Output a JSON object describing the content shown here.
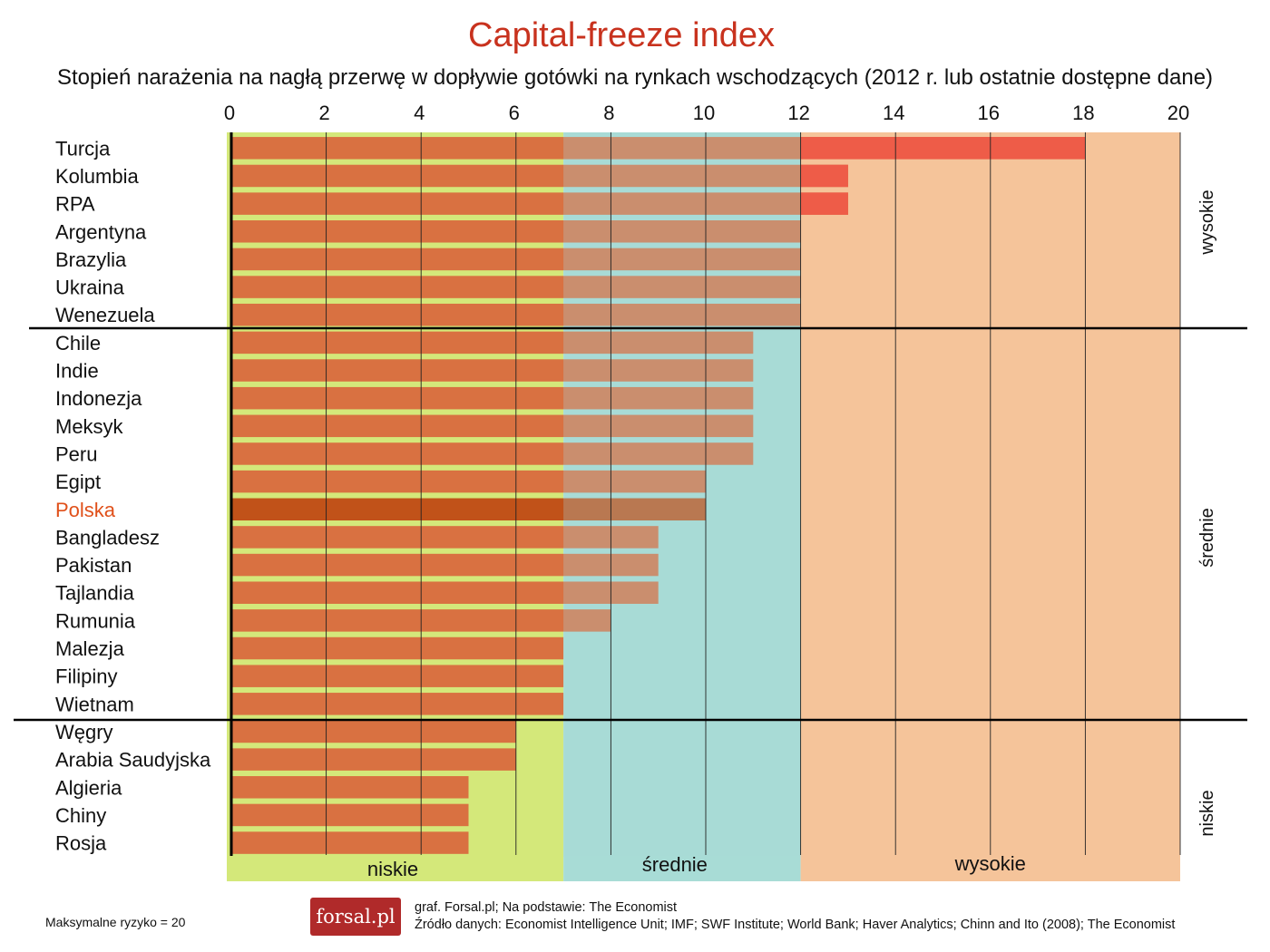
{
  "chart_data": {
    "type": "bar",
    "orientation": "horizontal",
    "title": "Capital-freeze index",
    "subtitle": "Stopień narażenia na nagłą przerwę w dopływie gotówki na rynkach wschodzących (2012 r. lub ostatnie dostępne dane)",
    "categories": [
      "Turcja",
      "Kolumbia",
      "RPA",
      "Argentyna",
      "Brazylia",
      "Ukraina",
      "Wenezuela",
      "Chile",
      "Indie",
      "Indonezja",
      "Meksyk",
      "Peru",
      "Egipt",
      "Polska",
      "Bangladesz",
      "Pakistan",
      "Tajlandia",
      "Rumunia",
      "Malezja",
      "Filipiny",
      "Wietnam",
      "Węgry",
      "Arabia Saudyjska",
      "Algieria",
      "Chiny",
      "Rosja"
    ],
    "values": [
      18,
      13,
      13,
      12,
      12,
      12,
      12,
      11,
      11,
      11,
      11,
      11,
      10,
      10,
      9,
      9,
      9,
      8,
      7,
      7,
      7,
      6,
      6,
      5,
      5,
      5
    ],
    "highlight": "Polska",
    "xlim": [
      0,
      20
    ],
    "xticks": [
      0,
      2,
      4,
      6,
      8,
      10,
      12,
      14,
      16,
      18,
      20
    ],
    "zones": [
      {
        "label": "niskie",
        "from": 0,
        "to": 7,
        "color": "#d4e87a"
      },
      {
        "label": "średnie",
        "from": 7,
        "to": 12,
        "color": "#a8dcd6"
      },
      {
        "label": "wysokie",
        "from": 12,
        "to": 20,
        "color": "#f5c49a"
      }
    ],
    "groups": [
      {
        "label": "wysokie",
        "from_index": 0,
        "to_index": 6
      },
      {
        "label": "średnie",
        "from_index": 7,
        "to_index": 20
      },
      {
        "label": "niskie",
        "from_index": 21,
        "to_index": 25
      }
    ],
    "colors": {
      "bar": "#d96a3e",
      "bar_highlight": "#c04a14",
      "high_overlap": "#ee5c48",
      "label": "#111111",
      "label_highlight": "#e0501a",
      "divider": "#000000",
      "grid": "#222222"
    }
  },
  "footer": {
    "max_note": "Maksymalne ryzyko = 20",
    "logo": "forsal.pl",
    "credit": "graf. Forsal.pl; Na podstawie: The Economist",
    "source": "Źródło danych: Economist Intelligence Unit; IMF; SWF Institute; World Bank; Haver Analytics; Chinn and Ito (2008); The Economist"
  }
}
